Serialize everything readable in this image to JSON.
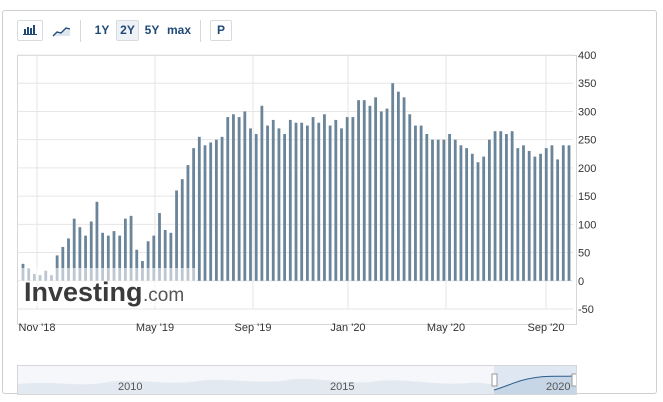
{
  "toolbar": {
    "chart_type_buttons": [
      {
        "icon": "bar-chart-icon"
      },
      {
        "icon": "area-chart-icon"
      }
    ],
    "ranges": [
      "1Y",
      "2Y",
      "5Y",
      "max"
    ],
    "active_range": "2Y",
    "print_label": "P"
  },
  "watermark": {
    "brand": "Investing",
    "suffix": ".com"
  },
  "navigator": {
    "labels": [
      "2010",
      "2015",
      "2020"
    ]
  },
  "colors": {
    "bar": "#6a8499",
    "grid": "#e6e6e6",
    "axis_text": "#333333",
    "accent": "#1f4a78"
  },
  "chart_data": {
    "type": "bar",
    "title": "",
    "xlabel": "",
    "ylabel": "",
    "ylim": [
      -50,
      400
    ],
    "yticks": [
      400,
      350,
      300,
      250,
      200,
      150,
      100,
      50,
      0,
      -50
    ],
    "xtick_labels": [
      "Nov '18",
      "May '19",
      "Sep '19",
      "Jan '20",
      "May '20",
      "Sep '20"
    ],
    "grid": true,
    "series": [
      {
        "values": [
          30,
          22,
          12,
          10,
          18,
          10,
          45,
          60,
          75,
          110,
          95,
          80,
          105,
          140,
          85,
          80,
          88,
          80,
          110,
          115,
          55,
          35,
          70,
          80,
          120,
          90,
          85,
          160,
          180,
          205,
          235,
          255,
          240,
          245,
          250,
          255,
          290,
          295,
          290,
          300,
          270,
          260,
          310,
          275,
          285,
          270,
          260,
          285,
          280,
          280,
          275,
          290,
          280,
          295,
          275,
          285,
          270,
          290,
          290,
          320,
          320,
          310,
          325,
          300,
          305,
          350,
          335,
          325,
          295,
          275,
          275,
          260,
          250,
          250,
          250,
          260,
          250,
          240,
          235,
          225,
          210,
          220,
          250,
          265,
          265,
          260,
          265,
          235,
          240,
          230,
          220,
          225,
          235,
          240,
          215,
          240,
          240
        ]
      }
    ]
  }
}
